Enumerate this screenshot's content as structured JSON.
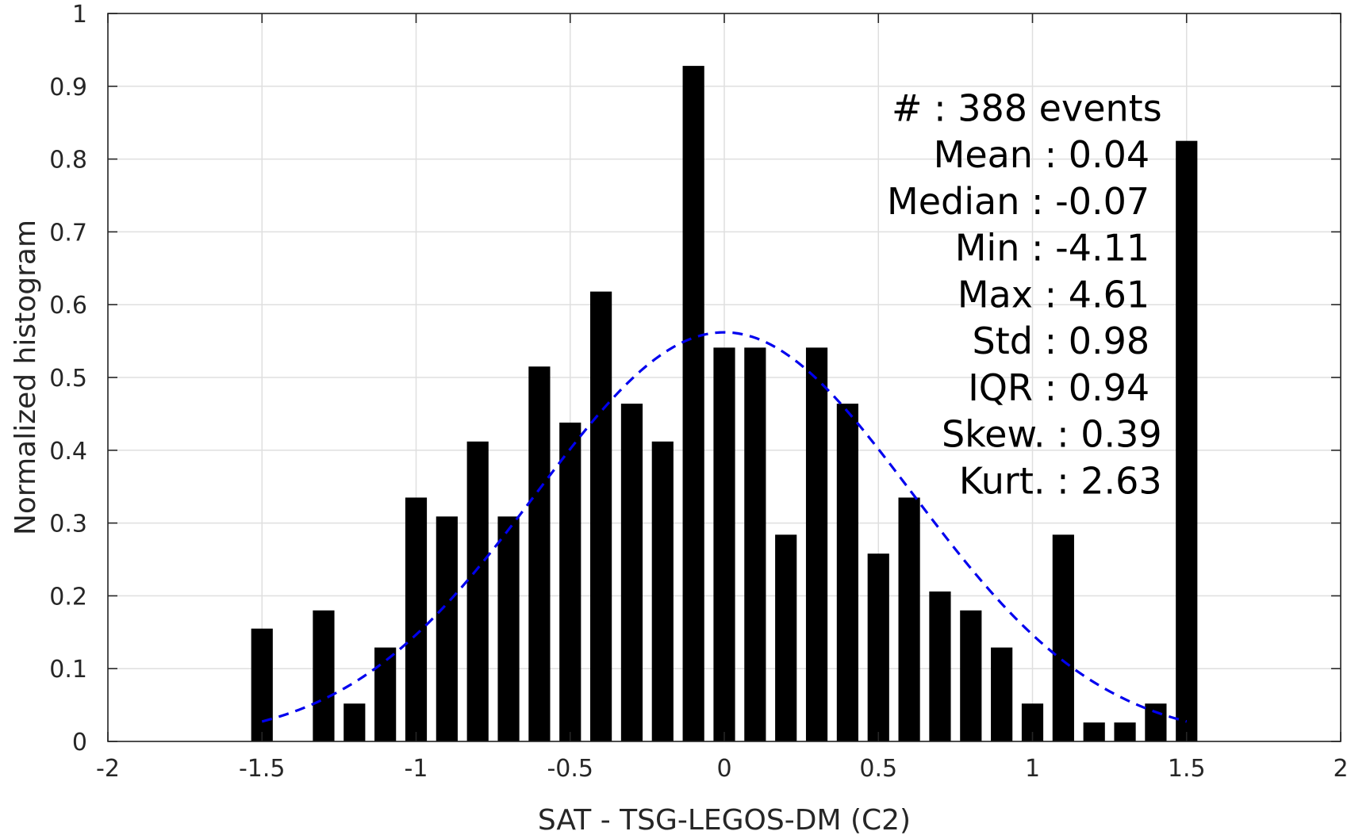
{
  "chart_data": {
    "type": "bar",
    "title": "",
    "xlabel": "SAT - TSG-LEGOS-DM (C2)",
    "ylabel": "Normalized histogram",
    "xlim": [
      -2,
      2
    ],
    "ylim": [
      0,
      1
    ],
    "grid": true,
    "x_ticks": [
      -2,
      -1.5,
      -1,
      -0.5,
      0,
      0.5,
      1,
      1.5,
      2
    ],
    "x_tick_labels": [
      "-2",
      "-1.5",
      "-1",
      "-0.5",
      "0",
      "0.5",
      "1",
      "1.5",
      "2"
    ],
    "y_ticks": [
      0,
      0.1,
      0.2,
      0.3,
      0.4,
      0.5,
      0.6,
      0.7,
      0.8,
      0.9,
      1
    ],
    "y_tick_labels": [
      "0",
      "0.1",
      "0.2",
      "0.3",
      "0.4",
      "0.5",
      "0.6",
      "0.7",
      "0.8",
      "0.9",
      "1"
    ],
    "bar_width": 0.07,
    "bars": {
      "x": [
        -1.5,
        -1.3,
        -1.2,
        -1.1,
        -1.0,
        -0.9,
        -0.8,
        -0.7,
        -0.6,
        -0.5,
        -0.4,
        -0.3,
        -0.2,
        -0.1,
        0.0,
        0.1,
        0.2,
        0.3,
        0.4,
        0.5,
        0.6,
        0.7,
        0.8,
        0.9,
        1.0,
        1.1,
        1.2,
        1.3,
        1.4,
        1.5
      ],
      "values": [
        0.155,
        0.18,
        0.052,
        0.129,
        0.335,
        0.309,
        0.412,
        0.309,
        0.515,
        0.438,
        0.618,
        0.464,
        0.412,
        0.928,
        0.541,
        0.541,
        0.284,
        0.541,
        0.464,
        0.258,
        0.335,
        0.206,
        0.18,
        0.129,
        0.052,
        0.284,
        0.026,
        0.026,
        0.052,
        0.825
      ],
      "color": "#000000"
    },
    "fit_curve": {
      "type": "normal",
      "mean": 0.0,
      "peak": 0.562,
      "sigma": 0.61,
      "x_range": [
        -1.5,
        1.5
      ],
      "color": "#0000ee",
      "style": "dashed"
    },
    "annotations": [
      {
        "text": "#  : 388 events",
        "data_x": 1.42,
        "data_y": 0.87
      },
      {
        "text": "Mean : 0.04",
        "data_x": 1.38,
        "data_y": 0.806
      },
      {
        "text": "Median : -0.07",
        "data_x": 1.38,
        "data_y": 0.742
      },
      {
        "text": "Min : -4.11",
        "data_x": 1.38,
        "data_y": 0.678
      },
      {
        "text": "Max : 4.61",
        "data_x": 1.38,
        "data_y": 0.614
      },
      {
        "text": "Std : 0.98",
        "data_x": 1.38,
        "data_y": 0.55
      },
      {
        "text": "IQR : 0.94",
        "data_x": 1.38,
        "data_y": 0.486
      },
      {
        "text": "Skew. : 0.39",
        "data_x": 1.42,
        "data_y": 0.422
      },
      {
        "text": "Kurt. : 2.63",
        "data_x": 1.42,
        "data_y": 0.358
      }
    ]
  }
}
